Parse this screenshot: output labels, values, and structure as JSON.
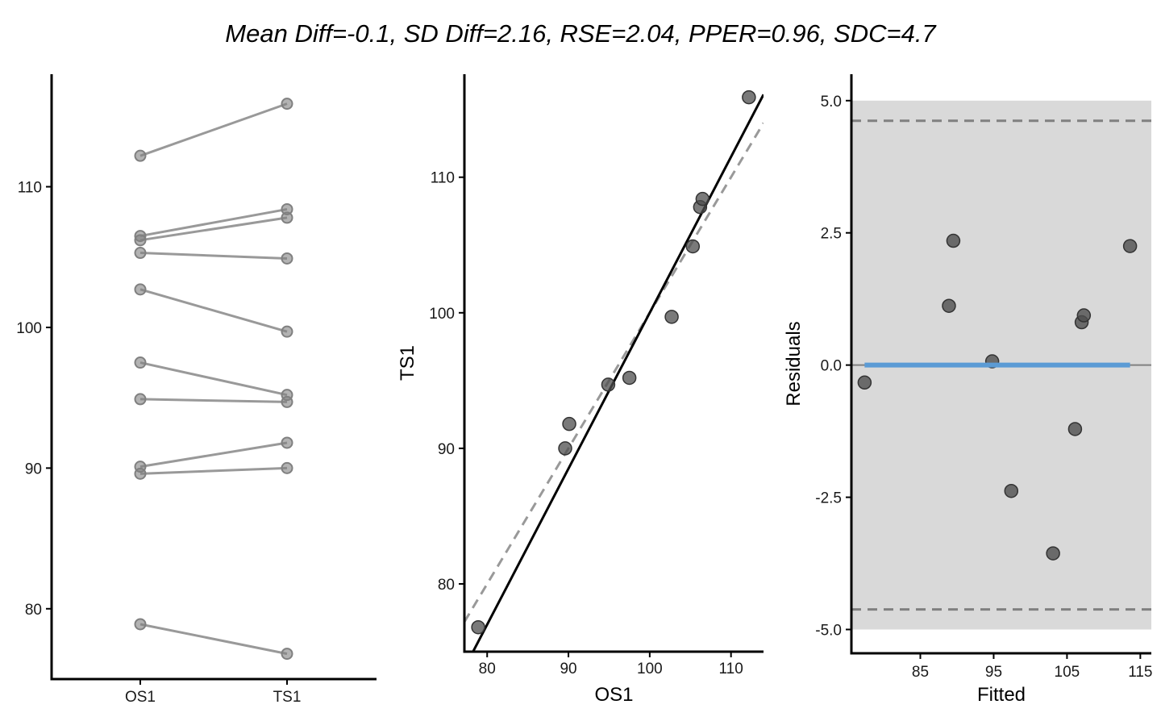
{
  "figure": {
    "title": "Mean Diff=-0.1, SD Diff=2.16, RSE=2.04, PPER=0.96, SDC=4.7"
  },
  "chart_data": [
    {
      "type": "line",
      "subtype": "paired-dot",
      "categories": [
        "OS1",
        "TS1"
      ],
      "ylim": [
        75.0,
        118.0
      ],
      "yticks": [
        80,
        90,
        100,
        110
      ],
      "xlabel": "",
      "ylabel": "",
      "pairs": [
        [
          78.9,
          76.8
        ],
        [
          89.6,
          90.0
        ],
        [
          90.1,
          91.8
        ],
        [
          94.9,
          94.7
        ],
        [
          97.5,
          95.2
        ],
        [
          102.7,
          99.7
        ],
        [
          105.3,
          104.9
        ],
        [
          106.2,
          107.8
        ],
        [
          106.5,
          108.4
        ],
        [
          112.2,
          115.9
        ]
      ],
      "colors": {
        "line": "#999999",
        "point": "#808080"
      }
    },
    {
      "type": "scatter",
      "xlabel": "OS1",
      "ylabel": "TS1",
      "xlim": [
        77.2,
        114.0
      ],
      "ylim": [
        75.0,
        117.6
      ],
      "xticks": [
        80,
        90,
        100,
        110
      ],
      "yticks": [
        80,
        90,
        100,
        110
      ],
      "points": [
        [
          78.9,
          76.8
        ],
        [
          89.6,
          90.0
        ],
        [
          90.1,
          91.8
        ],
        [
          94.9,
          94.7
        ],
        [
          97.5,
          95.2
        ],
        [
          102.7,
          99.7
        ],
        [
          105.3,
          104.9
        ],
        [
          106.2,
          107.8
        ],
        [
          106.5,
          108.4
        ],
        [
          112.2,
          115.9
        ]
      ],
      "regression_line": {
        "intercept": -15.0,
        "slope": 1.15,
        "style": "solid",
        "color": "#000000"
      },
      "identity_line": {
        "intercept": 0,
        "slope": 1,
        "style": "dashed",
        "color": "#999999"
      },
      "colors": {
        "point": "#4d4d4d"
      }
    },
    {
      "type": "scatter",
      "xlabel": "Fitted",
      "ylabel": "Residuals",
      "xlim": [
        75.6,
        116.5
      ],
      "ylim": [
        -5.45,
        5.5
      ],
      "xticks": [
        85,
        95,
        105,
        115
      ],
      "yticks": [
        -5.0,
        -2.5,
        0.0,
        2.5,
        5.0
      ],
      "points": [
        [
          77.4,
          -0.33
        ],
        [
          88.9,
          1.12
        ],
        [
          89.5,
          2.35
        ],
        [
          94.8,
          0.07
        ],
        [
          97.4,
          -2.38
        ],
        [
          103.1,
          -3.56
        ],
        [
          106.1,
          -1.21
        ],
        [
          107.0,
          0.81
        ],
        [
          107.3,
          0.94
        ],
        [
          113.6,
          2.25
        ]
      ],
      "band": [
        -5.0,
        5.0
      ],
      "dashed_limits": [
        -4.62,
        4.62
      ],
      "zero_line": {
        "y": 0.0,
        "x_from": 77.4,
        "x_to": 113.6
      },
      "colors": {
        "band": "#d9d9d9",
        "zero_line": "#5b9bd5",
        "dashed": "#808080",
        "point": "#4d4d4d"
      }
    }
  ]
}
